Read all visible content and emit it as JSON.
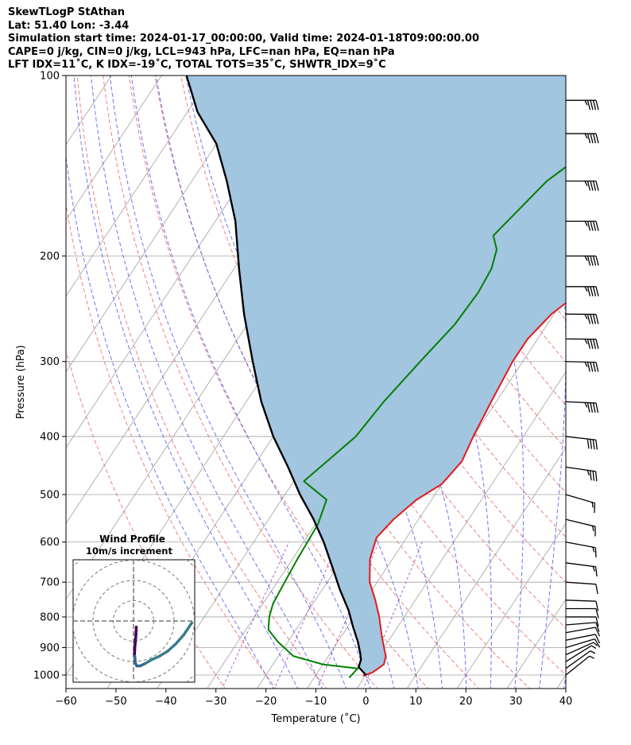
{
  "header": {
    "line1": "SkewTLogP StAthan",
    "line2": "Lat: 51.40   Lon: -3.44",
    "line3": "Simulation start time: 2024-01-17_00:00:00, Valid time: 2024-01-18T09:00:00.00",
    "line4": "CAPE=0 j/kg, CIN=0 j/kg, LCL=943 hPa, LFC=nan hPa, EQ=nan hPa",
    "line5": "LFT IDX=11˚C, K IDX=-19˚C, TOTAL TOTS=35˚C, SHWTR_IDX=9˚C"
  },
  "chart_data": {
    "type": "line",
    "title": "SkewTLogP StAthan",
    "xlabel": "Temperature (˚C)",
    "ylabel": "Pressure (hPa)",
    "xlim": [
      -60,
      40
    ],
    "ylim": [
      1050,
      100
    ],
    "x_ticks": [
      "−60",
      "−50",
      "−40",
      "−30",
      "−20",
      "−10",
      "0",
      "10",
      "20",
      "30",
      "40"
    ],
    "x_tick_values": [
      -60,
      -50,
      -40,
      -30,
      -20,
      -10,
      0,
      10,
      20,
      30,
      40
    ],
    "y_ticks": [
      "1000",
      "900",
      "800",
      "700",
      "600",
      "500",
      "400",
      "300",
      "200",
      "100"
    ],
    "y_tick_values": [
      1000,
      900,
      800,
      700,
      600,
      500,
      400,
      300,
      200,
      100
    ],
    "colors": {
      "temperature": "#e31a1c",
      "dewpoint": "#008000",
      "parcel": "#000000",
      "shade": "#a2c5e0",
      "dry_adiabat": "#f07070",
      "moist_adiabat": "#5a66f0",
      "mixing_ratio": "#9b30c0",
      "isotherm": "#a0a0a0"
    },
    "series": [
      {
        "name": "temperature",
        "points": [
          [
            -0.5,
            1003
          ],
          [
            1,
            990
          ],
          [
            2.2,
            960
          ],
          [
            1.5,
            930
          ],
          [
            0,
            900
          ],
          [
            -2,
            860
          ],
          [
            -5,
            800
          ],
          [
            -8,
            750
          ],
          [
            -11.5,
            700
          ],
          [
            -14.5,
            640
          ],
          [
            -16,
            590
          ],
          [
            -15,
            550
          ],
          [
            -13,
            510
          ],
          [
            -10,
            480
          ],
          [
            -9,
            440
          ],
          [
            -10,
            400
          ],
          [
            -11,
            350
          ],
          [
            -12,
            300
          ],
          [
            -12,
            275
          ],
          [
            -10.5,
            250
          ],
          [
            -7,
            225
          ],
          [
            -4,
            200
          ],
          [
            1,
            175
          ],
          [
            4.5,
            150
          ],
          [
            6.5,
            130
          ],
          [
            8,
            115
          ],
          [
            10,
            100
          ]
        ]
      },
      {
        "name": "dewpoint",
        "points": [
          [
            -3,
            1010
          ],
          [
            -2.5,
            975
          ],
          [
            -10,
            960
          ],
          [
            -17,
            930
          ],
          [
            -22,
            880
          ],
          [
            -25.5,
            840
          ],
          [
            -27,
            800
          ],
          [
            -28,
            760
          ],
          [
            -28.5,
            700
          ],
          [
            -29,
            640
          ],
          [
            -29.5,
            560
          ],
          [
            -31,
            510
          ],
          [
            -38,
            475
          ],
          [
            -36,
            440
          ],
          [
            -33.5,
            400
          ],
          [
            -32.5,
            350
          ],
          [
            -30.5,
            300
          ],
          [
            -28.5,
            260
          ],
          [
            -28,
            230
          ],
          [
            -28.5,
            210
          ],
          [
            -30,
            195
          ],
          [
            -32.5,
            185
          ],
          [
            -29,
            150
          ],
          [
            -21,
            120
          ],
          [
            -15,
            100
          ]
        ]
      },
      {
        "name": "parcel",
        "points": [
          [
            0,
            1000
          ],
          [
            -2.5,
            970
          ],
          [
            -3,
            943
          ],
          [
            -4,
            920
          ],
          [
            -6,
            880
          ],
          [
            -9,
            830
          ],
          [
            -12,
            780
          ],
          [
            -16.5,
            720
          ],
          [
            -21,
            660
          ],
          [
            -26,
            600
          ],
          [
            -31,
            550
          ],
          [
            -37,
            500
          ],
          [
            -43,
            450
          ],
          [
            -50,
            400
          ],
          [
            -57,
            350
          ],
          [
            -64,
            300
          ],
          [
            -72,
            250
          ],
          [
            -79,
            210
          ],
          [
            -86,
            175
          ],
          [
            -93,
            150
          ],
          [
            -100,
            130
          ],
          [
            -108,
            115
          ],
          [
            -115,
            100
          ]
        ]
      }
    ],
    "winds": [
      {
        "p": 1000,
        "u": -5.0,
        "v": -4.0
      },
      {
        "p": 975,
        "u": -7.0,
        "v": -5.0
      },
      {
        "p": 950,
        "u": -8.0,
        "v": -5.0
      },
      {
        "p": 925,
        "u": -9.0,
        "v": -4.0
      },
      {
        "p": 900,
        "u": -10.0,
        "v": -3.0
      },
      {
        "p": 875,
        "u": -10.0,
        "v": -2.0
      },
      {
        "p": 850,
        "u": -11.0,
        "v": -2.0
      },
      {
        "p": 825,
        "u": -12.0,
        "v": -1.0
      },
      {
        "p": 800,
        "u": -12.5,
        "v": 0.0
      },
      {
        "p": 775,
        "u": -13.0,
        "v": 0.0
      },
      {
        "p": 750,
        "u": -13.5,
        "v": 0.5
      },
      {
        "p": 700,
        "u": -14.5,
        "v": 1.0
      },
      {
        "p": 650,
        "u": -15.5,
        "v": 2.0
      },
      {
        "p": 600,
        "u": -16.0,
        "v": 3.0
      },
      {
        "p": 550,
        "u": -16.5,
        "v": 4.0
      },
      {
        "p": 500,
        "u": -17.0,
        "v": 5.0
      },
      {
        "p": 450,
        "u": -35.0,
        "v": 5.0
      },
      {
        "p": 400,
        "u": -44.0,
        "v": 5.0
      },
      {
        "p": 350,
        "u": -45.0,
        "v": 2.0
      },
      {
        "p": 300,
        "u": -45.0,
        "v": 1.0
      },
      {
        "p": 275,
        "u": -45.0,
        "v": 0.5
      },
      {
        "p": 250,
        "u": -46.0,
        "v": 0.5
      },
      {
        "p": 225,
        "u": -46.0,
        "v": 0.0
      },
      {
        "p": 200,
        "u": -46.0,
        "v": 0.0
      },
      {
        "p": 175,
        "u": -46.0,
        "v": 0.0
      },
      {
        "p": 150,
        "u": -46.0,
        "v": 0.0
      },
      {
        "p": 125,
        "u": -46.0,
        "v": 0.0
      },
      {
        "p": 110,
        "u": -46.0,
        "v": 0.0
      }
    ],
    "hodograph": {
      "title_line1": "Wind Profile",
      "title_line2": "10m/s increment",
      "ring_step": 10,
      "points": [
        [
          0.6,
          2.8
        ],
        [
          0.4,
          1.5
        ],
        [
          0.2,
          0.5
        ],
        [
          0,
          0
        ],
        [
          -0.2,
          -1.0
        ],
        [
          -0.3,
          -1.6
        ],
        [
          -0.2,
          -2.0
        ],
        [
          0.2,
          -3.2
        ],
        [
          0.8,
          -3.6
        ],
        [
          2.5,
          -3.6
        ],
        [
          5,
          -3.2
        ],
        [
          8,
          -2.6
        ],
        [
          12,
          -2.0
        ],
        [
          16,
          -1.2
        ],
        [
          20,
          0
        ],
        [
          24,
          1.5
        ],
        [
          28,
          3.5
        ]
      ],
      "colors": [
        "#440154",
        "#31688e",
        "#3a7d8c"
      ]
    }
  }
}
